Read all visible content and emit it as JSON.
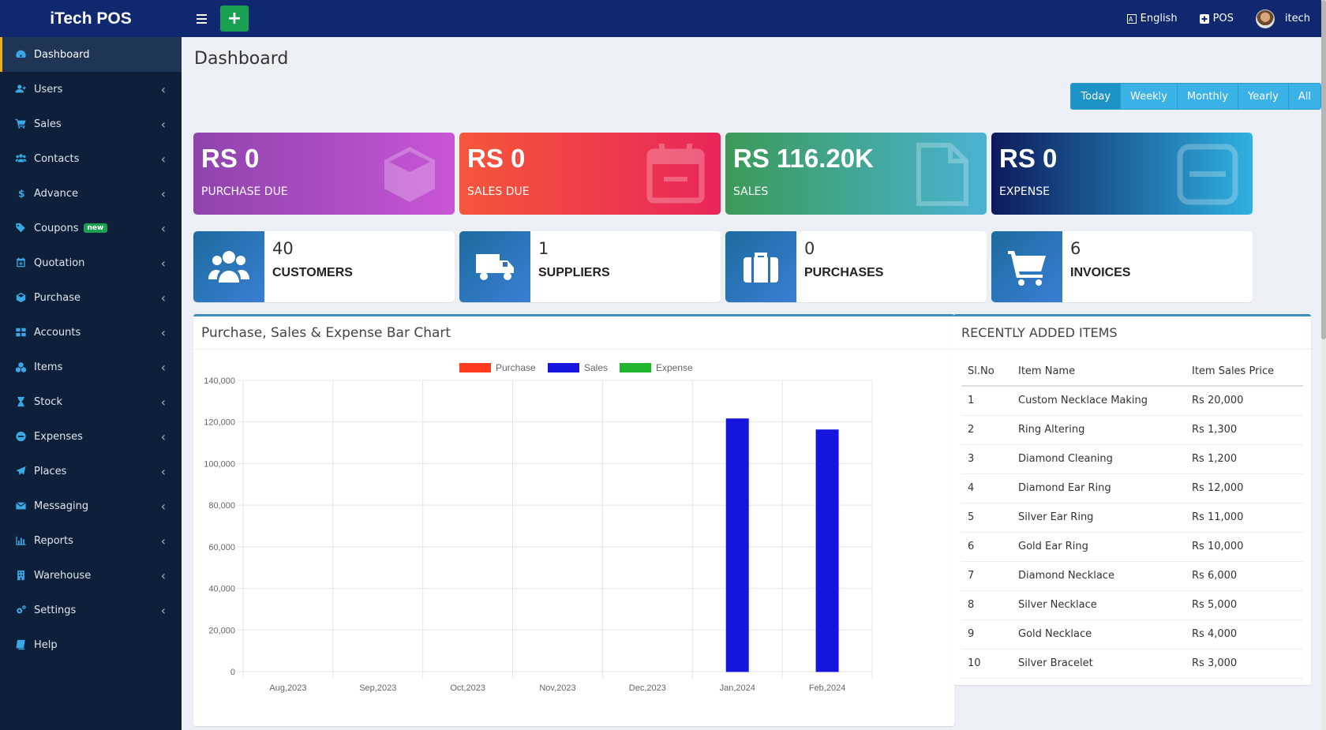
{
  "header": {
    "brand": "iTech POS",
    "language": "English",
    "pos": "POS",
    "user": "itech"
  },
  "sidebar": {
    "items": [
      {
        "label": "Dashboard",
        "icon": "dashboard-icon",
        "active": true,
        "chevron": false
      },
      {
        "label": "Users",
        "icon": "user-plus-icon",
        "chevron": true
      },
      {
        "label": "Sales",
        "icon": "cart-icon",
        "chevron": true
      },
      {
        "label": "Contacts",
        "icon": "users-icon",
        "chevron": true
      },
      {
        "label": "Advance",
        "icon": "dollar-icon",
        "chevron": true
      },
      {
        "label": "Coupons",
        "icon": "tags-icon",
        "chevron": true,
        "badge": "new"
      },
      {
        "label": "Quotation",
        "icon": "calendar-plus-icon",
        "chevron": true
      },
      {
        "label": "Purchase",
        "icon": "cube-icon",
        "chevron": true
      },
      {
        "label": "Accounts",
        "icon": "grid-icon",
        "chevron": true
      },
      {
        "label": "Items",
        "icon": "cubes-icon",
        "chevron": true
      },
      {
        "label": "Stock",
        "icon": "hourglass-icon",
        "chevron": true
      },
      {
        "label": "Expenses",
        "icon": "minus-circle-icon",
        "chevron": true
      },
      {
        "label": "Places",
        "icon": "paper-plane-icon",
        "chevron": true
      },
      {
        "label": "Messaging",
        "icon": "envelope-icon",
        "chevron": true
      },
      {
        "label": "Reports",
        "icon": "bar-chart-icon",
        "chevron": true
      },
      {
        "label": "Warehouse",
        "icon": "building-icon",
        "chevron": true
      },
      {
        "label": "Settings",
        "icon": "cogs-icon",
        "chevron": true
      },
      {
        "label": "Help",
        "icon": "book-icon",
        "chevron": false
      }
    ]
  },
  "page": {
    "title": "Dashboard",
    "periods": [
      "Today",
      "Weekly",
      "Monthly",
      "Yearly",
      "All"
    ],
    "active_period": "Today"
  },
  "kpis": [
    {
      "value": "RS 0",
      "label": "PURCHASE DUE",
      "icon": "cube-icon",
      "gradient": [
        "#8e44ad",
        "#c855d6"
      ]
    },
    {
      "value": "RS 0",
      "label": "SALES DUE",
      "icon": "calendar-icon",
      "gradient": [
        "#f5563a",
        "#e9265a"
      ]
    },
    {
      "value": "RS 116.20K",
      "label": "SALES",
      "icon": "file-icon",
      "gradient": [
        "#3b9a58",
        "#4ab3d3"
      ]
    },
    {
      "value": "RS 0",
      "label": "EXPENSE",
      "icon": "minus-square-icon",
      "gradient": [
        "#0d1a5c",
        "#2fb1e0"
      ]
    }
  ],
  "stats": [
    {
      "value": "40",
      "label": "CUSTOMERS",
      "icon": "users-icon"
    },
    {
      "value": "1",
      "label": "SUPPLIERS",
      "icon": "truck-icon"
    },
    {
      "value": "0",
      "label": "PURCHASES",
      "icon": "briefcase-icon"
    },
    {
      "value": "6",
      "label": "INVOICES",
      "icon": "cart-icon"
    }
  ],
  "chart_box": {
    "title": "Purchase, Sales & Expense Bar Chart"
  },
  "chart_data": {
    "type": "bar",
    "categories": [
      "Aug,2023",
      "Sep,2023",
      "Oct,2023",
      "Nov,2023",
      "Dec,2023",
      "Jan,2024",
      "Feb,2024"
    ],
    "series": [
      {
        "name": "Purchase",
        "color": "#ff3b1f",
        "values": [
          0,
          0,
          0,
          0,
          0,
          0,
          0
        ]
      },
      {
        "name": "Sales",
        "color": "#1515dd",
        "values": [
          0,
          0,
          0,
          0,
          0,
          121500,
          116200
        ]
      },
      {
        "name": "Expense",
        "color": "#1fb52e",
        "values": [
          0,
          0,
          0,
          0,
          0,
          0,
          0
        ]
      }
    ],
    "ylim": [
      0,
      140000
    ],
    "yticks": [
      0,
      20000,
      40000,
      60000,
      80000,
      100000,
      120000,
      140000
    ],
    "ytick_labels": [
      "0",
      "20,000",
      "40,000",
      "60,000",
      "80,000",
      "100,000",
      "120,000",
      "140,000"
    ],
    "legend": "top-center",
    "grid": true
  },
  "recent_items": {
    "title": "RECENTLY ADDED ITEMS",
    "columns": [
      "Sl.No",
      "Item Name",
      "Item Sales Price"
    ],
    "rows": [
      [
        "1",
        "Custom Necklace Making",
        "Rs 20,000"
      ],
      [
        "2",
        "Ring Altering",
        "Rs 1,300"
      ],
      [
        "3",
        "Diamond Cleaning",
        "Rs 1,200"
      ],
      [
        "4",
        "Diamond Ear Ring",
        "Rs 12,000"
      ],
      [
        "5",
        "Silver Ear Ring",
        "Rs 11,000"
      ],
      [
        "6",
        "Gold Ear Ring",
        "Rs 10,000"
      ],
      [
        "7",
        "Diamond Necklace",
        "Rs 6,000"
      ],
      [
        "8",
        "Silver Necklace",
        "Rs 5,000"
      ],
      [
        "9",
        "Gold Necklace",
        "Rs 4,000"
      ],
      [
        "10",
        "Silver Bracelet",
        "Rs 3,000"
      ]
    ]
  }
}
